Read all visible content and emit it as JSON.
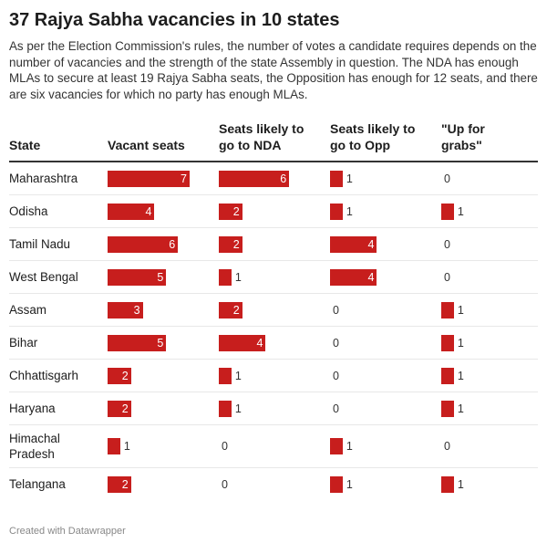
{
  "title": "37 Rajya Sabha vacancies in 10 states",
  "description": "As per the Election Commission's rules, the number of votes a candidate requires depends on the number of vacancies and the strength of the state Assembly in question. The NDA has enough MLAs to secure at least 19 Rajya Sabha seats, the Opposition has enough for 12 seats, and there are six vacancies for which no party has enough MLAs.",
  "footer": "Created with Datawrapper",
  "colors": {
    "bar": "#c71e1d"
  },
  "chart_data": {
    "type": "table",
    "columns": [
      "State",
      "Vacant seats",
      "Seats likely to go to NDA",
      "Seats likely to go to Opp",
      "\"Up for grabs\""
    ],
    "rows": [
      {
        "state": "Maharashtra",
        "values": [
          7,
          6,
          1,
          0
        ]
      },
      {
        "state": "Odisha",
        "values": [
          4,
          2,
          1,
          1
        ]
      },
      {
        "state": "Tamil Nadu",
        "values": [
          6,
          2,
          4,
          0
        ]
      },
      {
        "state": "West Bengal",
        "values": [
          5,
          1,
          4,
          0
        ]
      },
      {
        "state": "Assam",
        "values": [
          3,
          2,
          0,
          1
        ]
      },
      {
        "state": "Bihar",
        "values": [
          5,
          4,
          0,
          1
        ]
      },
      {
        "state": "Chhattisgarh",
        "values": [
          2,
          1,
          0,
          1
        ]
      },
      {
        "state": "Haryana",
        "values": [
          2,
          1,
          0,
          1
        ]
      },
      {
        "state": "Himachal Pradesh",
        "values": [
          1,
          0,
          1,
          0
        ]
      },
      {
        "state": "Telangana",
        "values": [
          2,
          0,
          1,
          1
        ]
      }
    ],
    "bar_max": 7
  }
}
